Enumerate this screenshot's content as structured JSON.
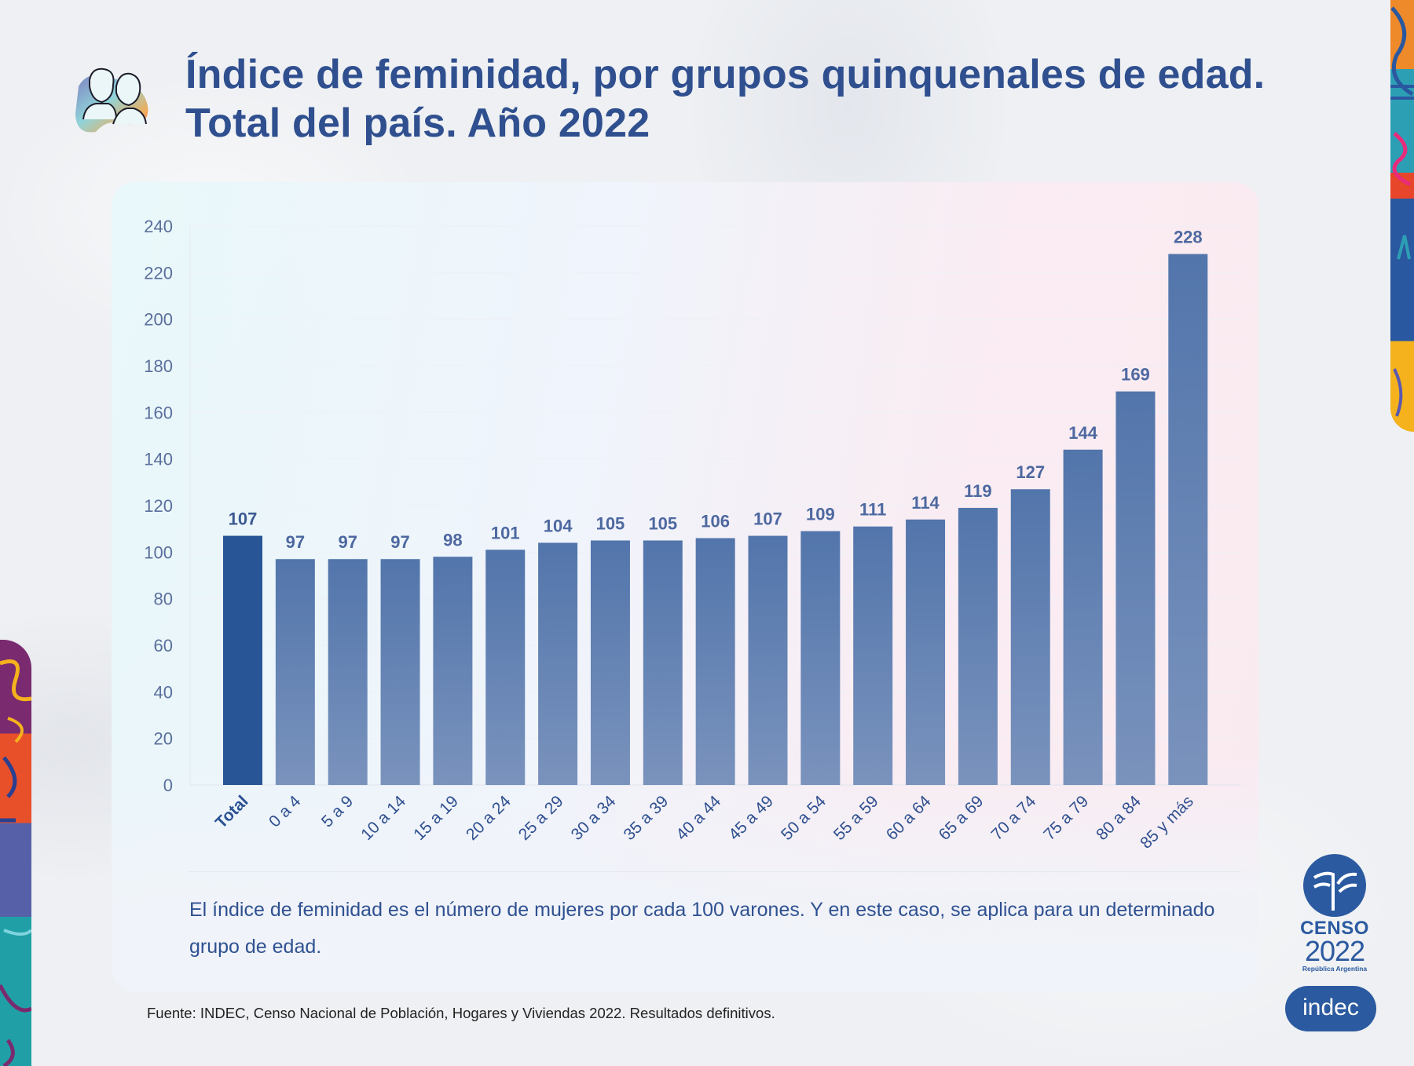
{
  "header": {
    "title_line1": "Índice de feminidad, por grupos quinquenales de edad.",
    "title_line2": "Total del país. Año 2022",
    "icon": "couple-portrait-icon"
  },
  "chart_data": {
    "type": "bar",
    "title": "Índice de feminidad, por grupos quinquenales de edad. Total del país. Año 2022",
    "xlabel": "",
    "ylabel": "",
    "ylim": [
      0,
      240
    ],
    "yticks": [
      0,
      20,
      40,
      60,
      80,
      100,
      120,
      140,
      160,
      180,
      200,
      220,
      240
    ],
    "grid": true,
    "legend": "none",
    "categories": [
      "Total",
      "0 a 4",
      "5 a 9",
      "10 a 14",
      "15 a 19",
      "20 a 24",
      "25 a 29",
      "30 a 34",
      "35 a 39",
      "40 a 44",
      "45 a 49",
      "50 a 54",
      "55 a 59",
      "60 a 64",
      "65 a 69",
      "70 a 74",
      "75 a 79",
      "80 a 84",
      "85 y más"
    ],
    "values": [
      107,
      97,
      97,
      97,
      98,
      101,
      104,
      105,
      105,
      106,
      107,
      109,
      111,
      114,
      119,
      127,
      144,
      169,
      228
    ],
    "highlight_category": "Total",
    "colors": {
      "highlight_bar": "#285595",
      "bar_top": "#5275ab",
      "bar_bottom": "#7a93bd",
      "axis_text": "#5a6f9c",
      "category_text": "#2f4f8f"
    }
  },
  "note": {
    "text": "El índice de feminidad es el número de mujeres por cada 100 varones. Y en este caso, se aplica para un determinado grupo de edad."
  },
  "footer": {
    "source": "Fuente: INDEC, Censo Nacional de Población, Hogares y Viviendas 2022. Resultados definitivos."
  },
  "logos": {
    "censo_word": "CENSO",
    "censo_year": "2022",
    "censo_country": "República Argentina",
    "indec": "indec"
  },
  "colors": {
    "title": "#2f4f8f",
    "brand_blue": "#2b5aa0"
  }
}
